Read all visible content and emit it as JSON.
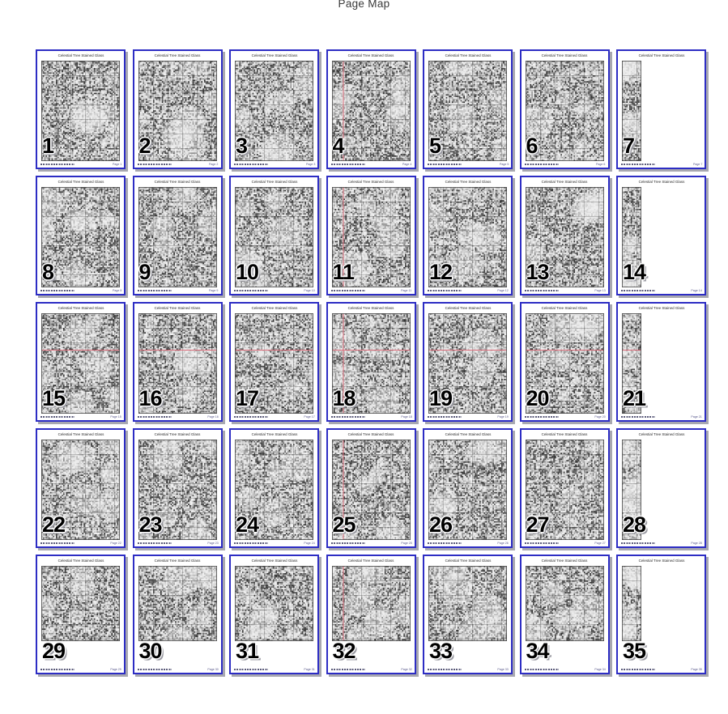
{
  "header": {
    "title": "Page Map"
  },
  "sheet": {
    "title": "Celestial Tree Stained Glass",
    "footer_page_prefix": "Page"
  },
  "colors": {
    "page_border": "#2d2dc4",
    "shadow": "#a8a8b0",
    "center_line": "#d96a78",
    "grid_major": "#4a4a4a",
    "pattern_bg": "#f3f3f3",
    "page_number": "#000000"
  },
  "grid": {
    "columns": 7,
    "rows": 5,
    "page_count": 35
  },
  "pages": [
    {
      "number": 1,
      "strip": false,
      "short": false,
      "v_center": false,
      "h_center": false
    },
    {
      "number": 2,
      "strip": false,
      "short": false,
      "v_center": false,
      "h_center": false
    },
    {
      "number": 3,
      "strip": false,
      "short": false,
      "v_center": false,
      "h_center": false
    },
    {
      "number": 4,
      "strip": false,
      "short": false,
      "v_center": true,
      "h_center": false
    },
    {
      "number": 5,
      "strip": false,
      "short": false,
      "v_center": false,
      "h_center": false
    },
    {
      "number": 6,
      "strip": false,
      "short": false,
      "v_center": false,
      "h_center": false
    },
    {
      "number": 7,
      "strip": true,
      "short": false,
      "v_center": false,
      "h_center": false
    },
    {
      "number": 8,
      "strip": false,
      "short": false,
      "v_center": false,
      "h_center": false
    },
    {
      "number": 9,
      "strip": false,
      "short": false,
      "v_center": false,
      "h_center": false
    },
    {
      "number": 10,
      "strip": false,
      "short": false,
      "v_center": false,
      "h_center": false
    },
    {
      "number": 11,
      "strip": false,
      "short": false,
      "v_center": true,
      "h_center": false
    },
    {
      "number": 12,
      "strip": false,
      "short": false,
      "v_center": false,
      "h_center": false
    },
    {
      "number": 13,
      "strip": false,
      "short": false,
      "v_center": false,
      "h_center": false
    },
    {
      "number": 14,
      "strip": true,
      "short": false,
      "v_center": false,
      "h_center": false
    },
    {
      "number": 15,
      "strip": false,
      "short": false,
      "v_center": false,
      "h_center": true
    },
    {
      "number": 16,
      "strip": false,
      "short": false,
      "v_center": false,
      "h_center": true
    },
    {
      "number": 17,
      "strip": false,
      "short": false,
      "v_center": false,
      "h_center": true
    },
    {
      "number": 18,
      "strip": false,
      "short": false,
      "v_center": true,
      "h_center": true
    },
    {
      "number": 19,
      "strip": false,
      "short": false,
      "v_center": false,
      "h_center": true
    },
    {
      "number": 20,
      "strip": false,
      "short": false,
      "v_center": false,
      "h_center": true
    },
    {
      "number": 21,
      "strip": true,
      "short": false,
      "v_center": false,
      "h_center": true
    },
    {
      "number": 22,
      "strip": false,
      "short": false,
      "v_center": false,
      "h_center": false
    },
    {
      "number": 23,
      "strip": false,
      "short": false,
      "v_center": false,
      "h_center": false
    },
    {
      "number": 24,
      "strip": false,
      "short": false,
      "v_center": false,
      "h_center": false
    },
    {
      "number": 25,
      "strip": false,
      "short": false,
      "v_center": true,
      "h_center": false
    },
    {
      "number": 26,
      "strip": false,
      "short": false,
      "v_center": false,
      "h_center": false
    },
    {
      "number": 27,
      "strip": false,
      "short": false,
      "v_center": false,
      "h_center": false
    },
    {
      "number": 28,
      "strip": true,
      "short": false,
      "v_center": false,
      "h_center": false
    },
    {
      "number": 29,
      "strip": false,
      "short": true,
      "v_center": false,
      "h_center": false
    },
    {
      "number": 30,
      "strip": false,
      "short": true,
      "v_center": false,
      "h_center": false
    },
    {
      "number": 31,
      "strip": false,
      "short": true,
      "v_center": false,
      "h_center": false
    },
    {
      "number": 32,
      "strip": false,
      "short": true,
      "v_center": true,
      "h_center": false
    },
    {
      "number": 33,
      "strip": false,
      "short": true,
      "v_center": false,
      "h_center": false
    },
    {
      "number": 34,
      "strip": false,
      "short": true,
      "v_center": false,
      "h_center": false
    },
    {
      "number": 35,
      "strip": true,
      "short": true,
      "v_center": false,
      "h_center": false
    }
  ]
}
